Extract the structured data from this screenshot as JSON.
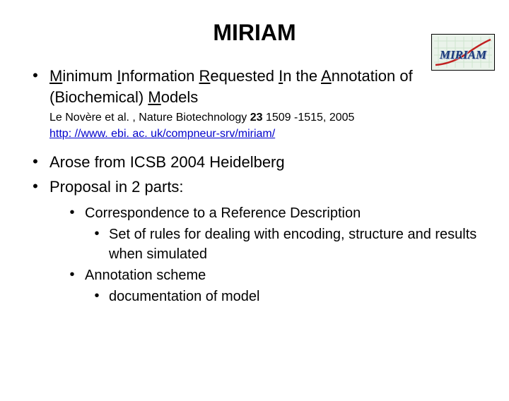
{
  "title": "MIRIAM",
  "logo": {
    "text": "MIRIAM",
    "border_color": "#000000",
    "bg_grid_color": "#cfe5cf",
    "bg_color": "#eaf3ea",
    "curve_color": "#c02020",
    "text_color": "#1a3a7a",
    "text_shadow": "#9aa8c8"
  },
  "items": [
    {
      "segments": [
        {
          "t": "M",
          "u": true
        },
        {
          "t": "inimum "
        },
        {
          "t": "I",
          "u": true
        },
        {
          "t": "nformation "
        },
        {
          "t": "R",
          "u": true
        },
        {
          "t": "equested "
        },
        {
          "t": "I",
          "u": true
        },
        {
          "t": "n the "
        },
        {
          "t": "A",
          "u": true
        },
        {
          "t": "nnotation of (Biochemical) "
        },
        {
          "t": "M",
          "u": true
        },
        {
          "t": "odels"
        }
      ],
      "citation_pre": "Le Novère et al. , Nature Biotechnology ",
      "citation_bold": "23",
      "citation_post": " 1509 -1515, 2005",
      "link": "http: //www. ebi. ac. uk/compneur-srv/miriam/"
    },
    {
      "text": "Arose from ICSB 2004 Heidelberg"
    },
    {
      "text": "Proposal in 2 parts:"
    }
  ],
  "sub": [
    {
      "text": "Correspondence to a Reference Description",
      "children": [
        {
          "text": "Set of rules for dealing with encoding, structure and results when simulated"
        }
      ]
    },
    {
      "text": "Annotation scheme",
      "children": [
        {
          "text": "documentation of model"
        }
      ]
    }
  ],
  "colors": {
    "text": "#000000",
    "link": "#0000cc",
    "background": "#ffffff"
  }
}
